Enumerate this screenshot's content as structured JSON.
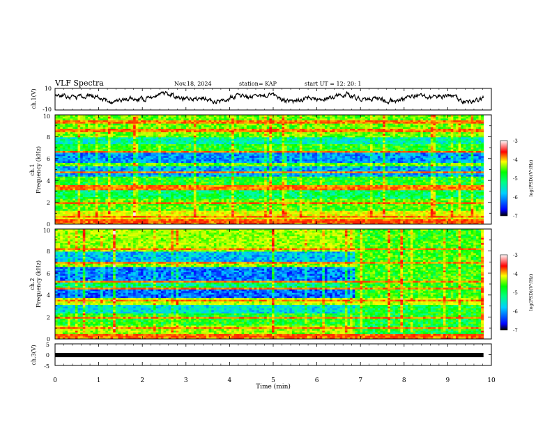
{
  "header": {
    "title": "VLF Spectra",
    "date": "Nov.18, 2024",
    "station": "station= KAP",
    "start": "start  UT =   12: 20: 1"
  },
  "chart_data": [
    {
      "type": "line",
      "name": "ch1-waveform",
      "ylabel": "ch.1(V)",
      "ylim": [
        -10,
        10
      ],
      "ytick_labels": [
        "10",
        "-10"
      ],
      "xlim": [
        0,
        10
      ],
      "data_extent_min": 9.82,
      "description_values_range": [
        -4,
        6
      ]
    },
    {
      "type": "heatmap",
      "name": "ch1-spectrogram",
      "ylabel_channel": "ch.1",
      "ylabel": "Frequency  (kHz)",
      "ylim": [
        0,
        10
      ],
      "ytick_labels": [
        "0",
        "2",
        "4",
        "6",
        "8",
        "10"
      ],
      "xlim": [
        0,
        9.82
      ],
      "colorbar": {
        "label": "log(PSD)(V²/Hz)",
        "range": [
          -7,
          -3
        ],
        "tick_labels": [
          "-3",
          "-4",
          "-5",
          "-6",
          "-7"
        ]
      },
      "bands": [
        {
          "from": 0.0,
          "to": 0.4,
          "level": -3.6
        },
        {
          "from": 0.4,
          "to": 1.2,
          "level": -4.2
        },
        {
          "from": 1.2,
          "to": 2.4,
          "level": -4.8
        },
        {
          "from": 2.4,
          "to": 3.4,
          "level": -5.3
        },
        {
          "from": 3.4,
          "to": 4.4,
          "level": -5.0
        },
        {
          "from": 4.4,
          "to": 5.3,
          "level": -6.1
        },
        {
          "from": 5.3,
          "to": 5.7,
          "level": -4.8
        },
        {
          "from": 5.7,
          "to": 6.6,
          "level": -6.2
        },
        {
          "from": 6.6,
          "to": 7.4,
          "level": -5.0
        },
        {
          "from": 7.4,
          "to": 8.0,
          "level": -5.6
        },
        {
          "from": 8.0,
          "to": 10.0,
          "level": -4.7
        }
      ],
      "lines_khz": [
        0.3,
        0.7,
        2.0,
        3.3,
        3.5,
        4.8,
        6.6,
        8.6,
        9.4
      ]
    },
    {
      "type": "heatmap",
      "name": "ch2-spectrogram",
      "ylabel_channel": "ch.2",
      "ylabel": "Frequency  (kHz)",
      "ylim": [
        0,
        10
      ],
      "ytick_labels": [
        "0",
        "2",
        "4",
        "6",
        "8",
        "10"
      ],
      "xlim": [
        0,
        9.82
      ],
      "change_at_min": 6.88,
      "colorbar": {
        "label": "log(PSD)(V²/Hz)",
        "range": [
          -7,
          -3
        ],
        "tick_labels": [
          "-3",
          "-4",
          "-5",
          "-6",
          "-7"
        ]
      },
      "bands": [
        {
          "from": 0.0,
          "to": 0.4,
          "level": -3.7
        },
        {
          "from": 0.4,
          "to": 1.2,
          "level": -4.5
        },
        {
          "from": 1.2,
          "to": 2.3,
          "level": -5.0
        },
        {
          "from": 2.3,
          "to": 3.2,
          "level": -5.8
        },
        {
          "from": 3.2,
          "to": 3.7,
          "level": -4.4
        },
        {
          "from": 3.7,
          "to": 4.6,
          "level": -6.4
        },
        {
          "from": 4.6,
          "to": 5.2,
          "level": -5.4
        },
        {
          "from": 5.2,
          "to": 6.6,
          "level": -6.3
        },
        {
          "from": 6.6,
          "to": 7.0,
          "level": -4.6
        },
        {
          "from": 7.0,
          "to": 8.0,
          "level": -6.0
        },
        {
          "from": 8.0,
          "to": 10.0,
          "level": -4.5
        }
      ],
      "bands_after_change": [
        {
          "from": 0.0,
          "to": 0.4,
          "level": -3.7
        },
        {
          "from": 0.4,
          "to": 3.2,
          "level": -5.1
        },
        {
          "from": 3.2,
          "to": 3.7,
          "level": -4.4
        },
        {
          "from": 3.7,
          "to": 10.0,
          "level": -4.9
        }
      ],
      "lines_khz": [
        0.3,
        1.0,
        2.0,
        3.5,
        4.6,
        5.2,
        7.0,
        8.2
      ]
    },
    {
      "type": "line",
      "name": "ch3-waveform",
      "ylabel": "ch.3(V)",
      "ylim": [
        -5,
        5
      ],
      "ytick_labels": [
        "5",
        "0",
        "-5"
      ],
      "xlim": [
        0,
        10
      ],
      "xlabel": "Time  (min)",
      "xtick_labels": [
        "0",
        "1",
        "2",
        "3",
        "4",
        "5",
        "6",
        "7",
        "8",
        "9",
        "10"
      ],
      "constant_value": -0.2
    }
  ],
  "colors": {
    "axis": "#000000",
    "trace": "#000000",
    "colormap": [
      "#00008b",
      "#0000ff",
      "#00bfff",
      "#00e5b0",
      "#00ff00",
      "#adff2f",
      "#ffff00",
      "#ff8c00",
      "#ff0000",
      "#ffb6c1",
      "#ffffff"
    ]
  }
}
